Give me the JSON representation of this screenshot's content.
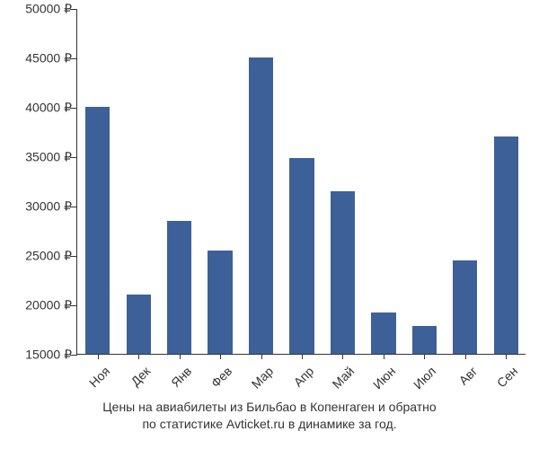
{
  "chart": {
    "type": "bar",
    "categories": [
      "Ноя",
      "Дек",
      "Янв",
      "Фев",
      "Мар",
      "Апр",
      "Май",
      "Июн",
      "Июл",
      "Авг",
      "Сен"
    ],
    "values": [
      40000,
      21000,
      28500,
      25500,
      45000,
      34800,
      31500,
      19200,
      17800,
      24500,
      37000
    ],
    "bar_color": "#3d6099",
    "ylim": [
      15000,
      50000
    ],
    "yticks": [
      15000,
      20000,
      25000,
      30000,
      35000,
      40000,
      45000,
      50000
    ],
    "ytick_labels": [
      "15000 ₽",
      "20000 ₽",
      "25000 ₽",
      "30000 ₽",
      "35000 ₽",
      "40000 ₽",
      "45000 ₽",
      "50000 ₽"
    ],
    "background_color": "#ffffff",
    "axis_color": "#333333",
    "label_fontsize": 14,
    "bar_width_ratio": 0.6,
    "x_label_rotation": -45
  },
  "caption": {
    "line1": "Цены на авиабилеты из Бильбао в Копенгаген и обратно",
    "line2": "по статистике Avticket.ru в динамике за год."
  }
}
